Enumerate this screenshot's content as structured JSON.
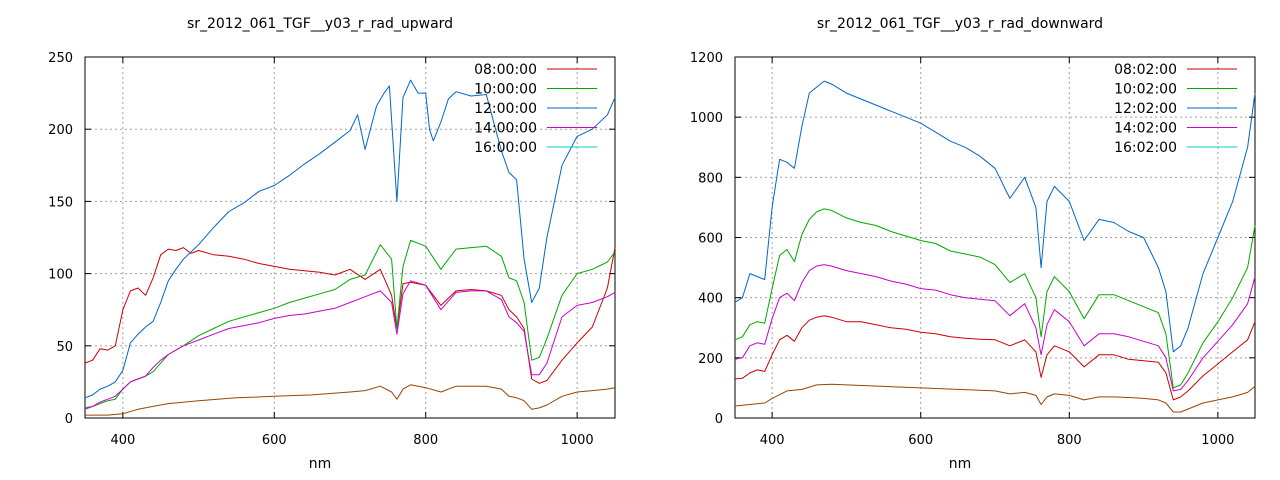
{
  "chart_data": [
    {
      "type": "line",
      "title": "sr_2012_061_TGF__y03_r_rad_upward",
      "xlabel": "nm",
      "ylabel": "",
      "xlim": [
        350,
        1050
      ],
      "ylim": [
        0,
        250
      ],
      "xticks": [
        400,
        600,
        800,
        1000
      ],
      "yticks": [
        0,
        50,
        100,
        150,
        200,
        250
      ],
      "grid": true,
      "legend_position": "top-right",
      "series": [
        {
          "name": "08:00:00",
          "color": "#cc0000",
          "x": [
            350,
            360,
            370,
            380,
            390,
            400,
            410,
            420,
            430,
            440,
            450,
            460,
            470,
            480,
            490,
            500,
            520,
            540,
            560,
            580,
            600,
            620,
            640,
            660,
            680,
            700,
            720,
            740,
            755,
            762,
            770,
            780,
            800,
            820,
            840,
            860,
            880,
            900,
            910,
            920,
            930,
            940,
            950,
            960,
            980,
            1000,
            1020,
            1040,
            1050
          ],
          "y": [
            38,
            40,
            48,
            47,
            50,
            75,
            88,
            90,
            85,
            97,
            113,
            117,
            116,
            118,
            114,
            116,
            113,
            112,
            110,
            107,
            105,
            103,
            102,
            101,
            99,
            103,
            96,
            103,
            85,
            62,
            93,
            94,
            92,
            78,
            88,
            89,
            88,
            85,
            75,
            70,
            62,
            27,
            24,
            26,
            40,
            52,
            63,
            90,
            118
          ]
        },
        {
          "name": "10:00:00",
          "color": "#00aa00",
          "x": [
            350,
            360,
            370,
            380,
            390,
            400,
            410,
            420,
            430,
            440,
            450,
            460,
            470,
            480,
            500,
            520,
            540,
            560,
            580,
            600,
            620,
            640,
            660,
            680,
            700,
            720,
            740,
            755,
            762,
            770,
            780,
            800,
            820,
            840,
            860,
            880,
            900,
            910,
            920,
            930,
            940,
            950,
            960,
            980,
            1000,
            1020,
            1040,
            1050
          ],
          "y": [
            7,
            8,
            10,
            12,
            13,
            20,
            25,
            27,
            29,
            32,
            38,
            44,
            47,
            50,
            57,
            62,
            67,
            70,
            73,
            76,
            80,
            83,
            86,
            89,
            96,
            99,
            120,
            110,
            62,
            105,
            123,
            119,
            103,
            117,
            118,
            119,
            112,
            97,
            95,
            80,
            40,
            42,
            55,
            85,
            100,
            103,
            108,
            115
          ]
        },
        {
          "name": "12:00:00",
          "color": "#0066cc",
          "x": [
            350,
            360,
            370,
            380,
            390,
            400,
            410,
            420,
            430,
            440,
            450,
            460,
            470,
            480,
            500,
            520,
            540,
            560,
            580,
            600,
            620,
            640,
            660,
            680,
            700,
            710,
            720,
            735,
            745,
            752,
            762,
            770,
            780,
            790,
            800,
            805,
            810,
            820,
            830,
            840,
            860,
            880,
            900,
            910,
            920,
            930,
            940,
            950,
            960,
            980,
            1000,
            1020,
            1040,
            1050
          ],
          "y": [
            14,
            16,
            20,
            22,
            25,
            33,
            52,
            58,
            63,
            67,
            80,
            95,
            103,
            110,
            120,
            132,
            143,
            149,
            157,
            161,
            168,
            176,
            183,
            191,
            199,
            210,
            186,
            216,
            225,
            230,
            150,
            222,
            234,
            225,
            225,
            200,
            192,
            205,
            221,
            226,
            223,
            224,
            185,
            170,
            165,
            110,
            80,
            90,
            125,
            175,
            195,
            200,
            210,
            222
          ]
        },
        {
          "name": "14:00:00",
          "color": "#cc00cc",
          "x": [
            350,
            360,
            370,
            380,
            390,
            400,
            410,
            420,
            430,
            440,
            450,
            460,
            470,
            480,
            500,
            520,
            540,
            560,
            580,
            600,
            620,
            640,
            660,
            680,
            700,
            720,
            740,
            755,
            762,
            770,
            780,
            800,
            820,
            840,
            860,
            880,
            900,
            910,
            920,
            930,
            940,
            950,
            960,
            980,
            1000,
            1020,
            1040,
            1050
          ],
          "y": [
            6,
            8,
            11,
            13,
            15,
            20,
            25,
            27,
            29,
            35,
            40,
            44,
            47,
            50,
            54,
            58,
            62,
            64,
            66,
            69,
            71,
            72,
            74,
            76,
            80,
            84,
            88,
            80,
            58,
            86,
            95,
            92,
            75,
            87,
            88,
            88,
            82,
            70,
            66,
            60,
            30,
            30,
            38,
            70,
            78,
            80,
            84,
            87
          ]
        },
        {
          "name": "16:00:00",
          "color": "#00cccc",
          "x": [],
          "y": []
        },
        {
          "name": "",
          "color": "#994400",
          "x": [
            350,
            380,
            400,
            420,
            440,
            460,
            500,
            550,
            600,
            650,
            700,
            720,
            740,
            755,
            762,
            770,
            780,
            800,
            820,
            840,
            860,
            880,
            900,
            910,
            920,
            930,
            940,
            950,
            960,
            980,
            1000,
            1020,
            1040,
            1050
          ],
          "y": [
            2,
            2,
            3,
            6,
            8,
            10,
            12,
            14,
            15,
            16,
            18,
            19,
            22,
            18,
            13,
            20,
            23,
            21,
            18,
            22,
            22,
            22,
            20,
            15,
            14,
            12,
            6,
            7,
            9,
            15,
            18,
            19,
            20,
            21
          ]
        }
      ]
    },
    {
      "type": "line",
      "title": "sr_2012_061_TGF__y03_r_rad_downward",
      "xlabel": "nm",
      "ylabel": "",
      "xlim": [
        350,
        1050
      ],
      "ylim": [
        0,
        1200
      ],
      "xticks": [
        400,
        600,
        800,
        1000
      ],
      "yticks": [
        0,
        200,
        400,
        600,
        800,
        1000,
        1200
      ],
      "grid": true,
      "legend_position": "top-right",
      "series": [
        {
          "name": "08:02:00",
          "color": "#cc0000",
          "x": [
            350,
            360,
            370,
            380,
            390,
            400,
            410,
            420,
            430,
            440,
            450,
            460,
            470,
            480,
            500,
            520,
            540,
            560,
            580,
            600,
            620,
            640,
            660,
            680,
            700,
            720,
            740,
            755,
            762,
            770,
            780,
            800,
            820,
            840,
            860,
            880,
            900,
            920,
            930,
            940,
            950,
            960,
            980,
            1000,
            1020,
            1040,
            1050
          ],
          "y": [
            130,
            132,
            150,
            160,
            155,
            210,
            260,
            275,
            255,
            300,
            325,
            335,
            340,
            335,
            320,
            320,
            310,
            300,
            295,
            285,
            280,
            270,
            265,
            262,
            260,
            240,
            260,
            220,
            135,
            210,
            240,
            220,
            170,
            210,
            210,
            195,
            190,
            185,
            150,
            60,
            70,
            90,
            140,
            180,
            220,
            260,
            320
          ]
        },
        {
          "name": "10:02:00",
          "color": "#00aa00",
          "x": [
            350,
            360,
            370,
            380,
            390,
            400,
            410,
            420,
            430,
            440,
            450,
            460,
            470,
            480,
            500,
            520,
            540,
            560,
            580,
            600,
            620,
            640,
            660,
            680,
            700,
            720,
            740,
            755,
            762,
            770,
            780,
            800,
            820,
            840,
            860,
            880,
            900,
            920,
            930,
            940,
            950,
            960,
            980,
            1000,
            1020,
            1040,
            1050
          ],
          "y": [
            260,
            270,
            310,
            320,
            315,
            430,
            540,
            560,
            520,
            610,
            660,
            685,
            695,
            690,
            665,
            650,
            640,
            620,
            605,
            590,
            580,
            555,
            545,
            535,
            510,
            450,
            480,
            400,
            270,
            420,
            470,
            420,
            330,
            410,
            410,
            390,
            370,
            350,
            280,
            100,
            110,
            150,
            250,
            320,
            400,
            500,
            640
          ]
        },
        {
          "name": "12:02:00",
          "color": "#0066cc",
          "x": [
            350,
            360,
            370,
            380,
            390,
            400,
            410,
            420,
            430,
            440,
            450,
            460,
            470,
            480,
            500,
            520,
            540,
            560,
            580,
            600,
            620,
            640,
            660,
            680,
            700,
            720,
            740,
            755,
            762,
            770,
            780,
            800,
            820,
            840,
            860,
            880,
            900,
            920,
            930,
            940,
            950,
            960,
            980,
            1000,
            1020,
            1040,
            1050
          ],
          "y": [
            385,
            400,
            480,
            470,
            460,
            700,
            860,
            850,
            830,
            970,
            1080,
            1100,
            1120,
            1110,
            1080,
            1060,
            1040,
            1020,
            1000,
            980,
            950,
            920,
            900,
            870,
            830,
            730,
            800,
            700,
            500,
            720,
            770,
            720,
            590,
            660,
            650,
            620,
            600,
            500,
            420,
            220,
            240,
            300,
            480,
            600,
            720,
            900,
            1080
          ]
        },
        {
          "name": "14:02:00",
          "color": "#cc00cc",
          "x": [
            350,
            360,
            370,
            380,
            390,
            400,
            410,
            420,
            430,
            440,
            450,
            460,
            470,
            480,
            500,
            520,
            540,
            560,
            580,
            600,
            620,
            640,
            660,
            680,
            700,
            720,
            740,
            755,
            762,
            770,
            780,
            800,
            820,
            840,
            860,
            880,
            900,
            920,
            930,
            940,
            950,
            960,
            980,
            1000,
            1020,
            1040,
            1050
          ],
          "y": [
            195,
            200,
            240,
            250,
            245,
            330,
            400,
            415,
            390,
            450,
            490,
            505,
            510,
            505,
            490,
            480,
            470,
            455,
            445,
            430,
            425,
            410,
            400,
            395,
            390,
            340,
            380,
            300,
            210,
            310,
            360,
            320,
            240,
            280,
            280,
            270,
            255,
            240,
            200,
            90,
            95,
            125,
            200,
            255,
            310,
            380,
            470
          ]
        },
        {
          "name": "16:02:00",
          "color": "#00cccc",
          "x": [],
          "y": []
        },
        {
          "name": "",
          "color": "#994400",
          "x": [
            350,
            370,
            390,
            400,
            420,
            440,
            460,
            480,
            500,
            550,
            600,
            650,
            700,
            720,
            740,
            755,
            762,
            770,
            780,
            800,
            820,
            840,
            860,
            880,
            900,
            920,
            930,
            940,
            950,
            960,
            980,
            1000,
            1020,
            1040,
            1050
          ],
          "y": [
            40,
            45,
            50,
            65,
            90,
            95,
            110,
            112,
            110,
            105,
            100,
            95,
            90,
            80,
            85,
            75,
            45,
            70,
            80,
            75,
            60,
            70,
            70,
            68,
            65,
            60,
            50,
            20,
            20,
            30,
            50,
            60,
            70,
            85,
            105
          ]
        }
      ]
    }
  ]
}
